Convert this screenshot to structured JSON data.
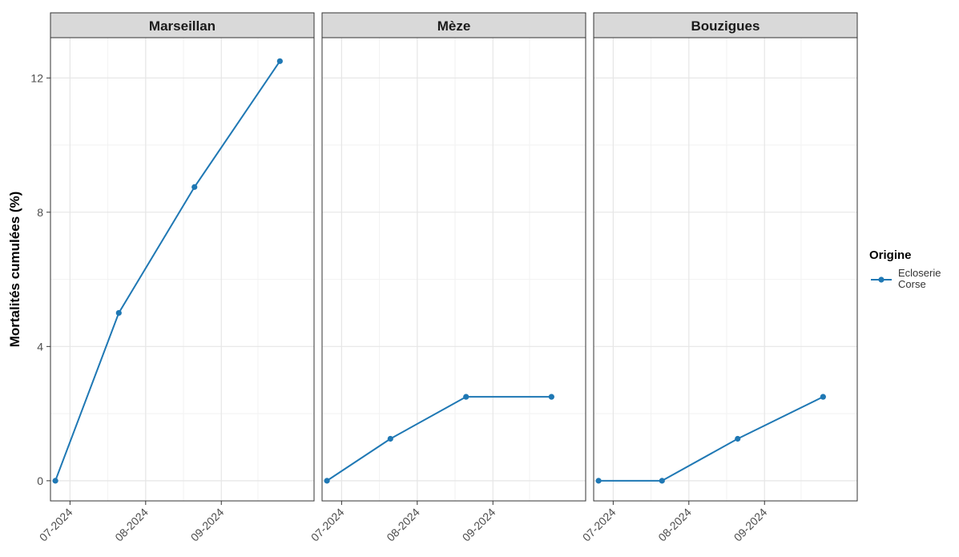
{
  "chart_data": {
    "type": "line",
    "ylabel": "Mortalités cumulées (%)",
    "xlabel": "",
    "ylim": [
      -0.6,
      13.2
    ],
    "xlim": [
      "2024-06-23",
      "2024-10-09"
    ],
    "y_ticks": [
      0,
      4,
      8,
      12
    ],
    "x_ticks": [
      {
        "date": "2024-07-01",
        "label": "07-2024"
      },
      {
        "date": "2024-08-01",
        "label": "08-2024"
      },
      {
        "date": "2024-09-01",
        "label": "09-2024"
      }
    ],
    "grid": true,
    "legend": {
      "position": "right",
      "title": "Origine",
      "entries": [
        {
          "label_lines": [
            "Ecloserie",
            "Corse"
          ],
          "color": "#1f78b4"
        }
      ]
    },
    "facets": [
      {
        "title": "Marseillan",
        "series": [
          {
            "name": "Ecloserie Corse",
            "color": "#1f78b4",
            "points": [
              {
                "x": "2024-06-25",
                "y": 0
              },
              {
                "x": "2024-07-21",
                "y": 5.0
              },
              {
                "x": "2024-08-21",
                "y": 8.75
              },
              {
                "x": "2024-09-25",
                "y": 12.5
              }
            ]
          }
        ]
      },
      {
        "title": "Mèze",
        "series": [
          {
            "name": "Ecloserie Corse",
            "color": "#1f78b4",
            "points": [
              {
                "x": "2024-06-25",
                "y": 0
              },
              {
                "x": "2024-07-21",
                "y": 1.25
              },
              {
                "x": "2024-08-21",
                "y": 2.5
              },
              {
                "x": "2024-09-25",
                "y": 2.5
              }
            ]
          }
        ]
      },
      {
        "title": "Bouzigues",
        "series": [
          {
            "name": "Ecloserie Corse",
            "color": "#1f78b4",
            "points": [
              {
                "x": "2024-06-25",
                "y": 0
              },
              {
                "x": "2024-07-21",
                "y": 0
              },
              {
                "x": "2024-08-21",
                "y": 1.25
              },
              {
                "x": "2024-09-25",
                "y": 2.5
              }
            ]
          }
        ]
      }
    ]
  }
}
